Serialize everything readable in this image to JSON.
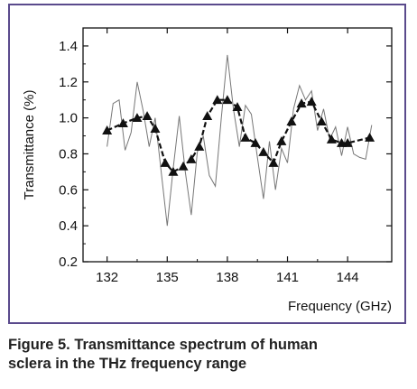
{
  "chart_data": {
    "type": "line",
    "xlabel": "Frequency (GHz)",
    "ylabel": "Transmittance (%)",
    "xlim": [
      130.8,
      146.2
    ],
    "ylim": [
      0.2,
      1.5
    ],
    "x_ticks": [
      132,
      135,
      138,
      141,
      144
    ],
    "y_ticks": [
      0.2,
      0.4,
      0.6,
      0.8,
      1.0,
      1.2,
      1.4
    ],
    "x_tick_labels": [
      "132",
      "135",
      "138",
      "141",
      "144"
    ],
    "y_tick_labels": [
      "0.2",
      "0.4",
      "0.6",
      "0.8",
      "1.0",
      "1.2",
      "1.4"
    ],
    "grid": false,
    "series": [
      {
        "style": "thin-gray-line",
        "color": "#777777",
        "x": [
          132.0,
          132.3,
          132.6,
          132.9,
          133.2,
          133.5,
          133.8,
          134.1,
          134.4,
          134.7,
          135.0,
          135.3,
          135.6,
          135.9,
          136.2,
          136.5,
          136.8,
          137.1,
          137.4,
          137.7,
          138.0,
          138.3,
          138.6,
          138.9,
          139.2,
          139.5,
          139.8,
          140.1,
          140.4,
          140.7,
          141.0,
          141.3,
          141.6,
          141.9,
          142.2,
          142.5,
          142.8,
          143.1,
          143.4,
          143.7,
          144.0,
          144.3,
          144.6,
          144.9,
          145.2
        ],
        "y": [
          0.84,
          1.08,
          1.1,
          0.82,
          0.92,
          1.2,
          1.04,
          0.84,
          1.0,
          0.7,
          0.4,
          0.72,
          1.01,
          0.7,
          0.46,
          0.81,
          0.9,
          0.68,
          0.62,
          1.0,
          1.35,
          1.05,
          0.84,
          1.07,
          1.02,
          0.78,
          0.55,
          0.87,
          0.6,
          0.83,
          0.75,
          1.05,
          1.18,
          1.1,
          1.15,
          0.93,
          1.05,
          0.88,
          0.95,
          0.79,
          0.95,
          0.8,
          0.78,
          0.77,
          0.96
        ]
      },
      {
        "style": "bold-dashed-triangles",
        "color": "#111111",
        "x": [
          132.0,
          132.8,
          133.5,
          134.0,
          134.4,
          134.9,
          135.3,
          135.8,
          136.2,
          136.6,
          137.0,
          137.5,
          138.0,
          138.5,
          138.9,
          139.4,
          139.8,
          140.3,
          140.7,
          141.2,
          141.7,
          142.2,
          142.7,
          143.2,
          143.7,
          144.0,
          145.1
        ],
        "y": [
          0.93,
          0.97,
          1.0,
          1.01,
          0.94,
          0.75,
          0.7,
          0.73,
          0.77,
          0.84,
          1.01,
          1.1,
          1.1,
          1.06,
          0.89,
          0.86,
          0.81,
          0.75,
          0.87,
          0.98,
          1.08,
          1.09,
          0.98,
          0.88,
          0.86,
          0.86,
          0.89
        ]
      }
    ]
  },
  "caption": {
    "line1": "Figure 5. Transmittance spectrum of human",
    "line2": "sclera in the THz frequency range"
  },
  "colors": {
    "frame_border": "#5a4a8c",
    "thin_line": "#777777",
    "marker_line": "#111111"
  }
}
